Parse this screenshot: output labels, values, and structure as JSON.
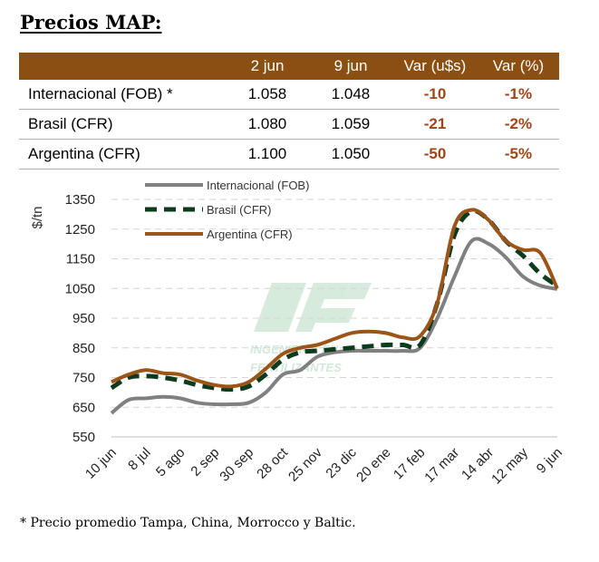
{
  "title": "Precios MAP:",
  "table": {
    "headers": [
      "",
      "2 jun",
      "9 jun",
      "Var (u$s)",
      "Var (%)"
    ],
    "rows": [
      {
        "label": "Internacional (FOB) *",
        "v1": "1.058",
        "v2": "1.048",
        "var_abs": "-10",
        "var_pct": "-1%"
      },
      {
        "label": "Brasil (CFR)",
        "v1": "1.080",
        "v2": "1.059",
        "var_abs": "-21",
        "var_pct": "-2%"
      },
      {
        "label": "Argentina (CFR)",
        "v1": "1.100",
        "v2": "1.050",
        "var_abs": "-50",
        "var_pct": "-5%"
      }
    ]
  },
  "footnote": "* Precio promedio Tampa, China, Morrocco y Baltic.",
  "watermark": "INGENIERIA EN FERTILIZANTES",
  "colors": {
    "header_bg": "#8b4f12",
    "var_text": "#a0451a",
    "internacional": "#808080",
    "brasil": "#0d3b1e",
    "argentina": "#9b5518"
  },
  "chart_data": {
    "type": "line",
    "ylabel": "$/tn",
    "ylim": [
      550,
      1350
    ],
    "yticks": [
      550,
      650,
      750,
      850,
      950,
      1050,
      1150,
      1250,
      1350
    ],
    "ytick_labels": [
      "550",
      "650",
      "750",
      "850",
      "950",
      "1050",
      "1150",
      "1250",
      "1350"
    ],
    "grid": true,
    "legend": "top-left",
    "x_tick_labels": [
      "10 jun",
      "8 jul",
      "5 ago",
      "2 sep",
      "30 sep",
      "28 oct",
      "25 nov",
      "23 dic",
      "20 ene",
      "17 feb",
      "17 mar",
      "14 abr",
      "12 may",
      "9 jun"
    ],
    "x": [
      "10 jun",
      "24 jun",
      "8 jul",
      "22 jul",
      "5 ago",
      "19 ago",
      "2 sep",
      "16 sep",
      "30 sep",
      "14 oct",
      "28 oct",
      "11 nov",
      "25 nov",
      "9 dic",
      "23 dic",
      "6 ene",
      "20 ene",
      "3 feb",
      "17 feb",
      "3 mar",
      "17 mar",
      "31 mar",
      "14 abr",
      "28 abr",
      "12 may",
      "26 may",
      "9 jun"
    ],
    "series": [
      {
        "name": "Internacional (FOB)",
        "style": "solid",
        "color": "#808080",
        "values": [
          630,
          675,
          680,
          685,
          680,
          665,
          660,
          660,
          665,
          700,
          760,
          775,
          820,
          835,
          840,
          840,
          840,
          840,
          850,
          950,
          1090,
          1210,
          1200,
          1155,
          1090,
          1060,
          1048
        ]
      },
      {
        "name": "Brasil (CFR)",
        "style": "dashed",
        "color": "#0d3b1e",
        "values": [
          715,
          750,
          755,
          750,
          740,
          725,
          715,
          710,
          720,
          760,
          810,
          835,
          840,
          845,
          850,
          855,
          860,
          860,
          860,
          1000,
          1230,
          1310,
          1280,
          1210,
          1160,
          1100,
          1059
        ]
      },
      {
        "name": "Argentina (CFR)",
        "style": "solid",
        "color": "#9b5518",
        "values": [
          735,
          760,
          775,
          765,
          760,
          740,
          725,
          720,
          735,
          780,
          830,
          850,
          860,
          880,
          900,
          905,
          900,
          885,
          890,
          1000,
          1260,
          1315,
          1280,
          1210,
          1180,
          1170,
          1050
        ]
      }
    ]
  }
}
